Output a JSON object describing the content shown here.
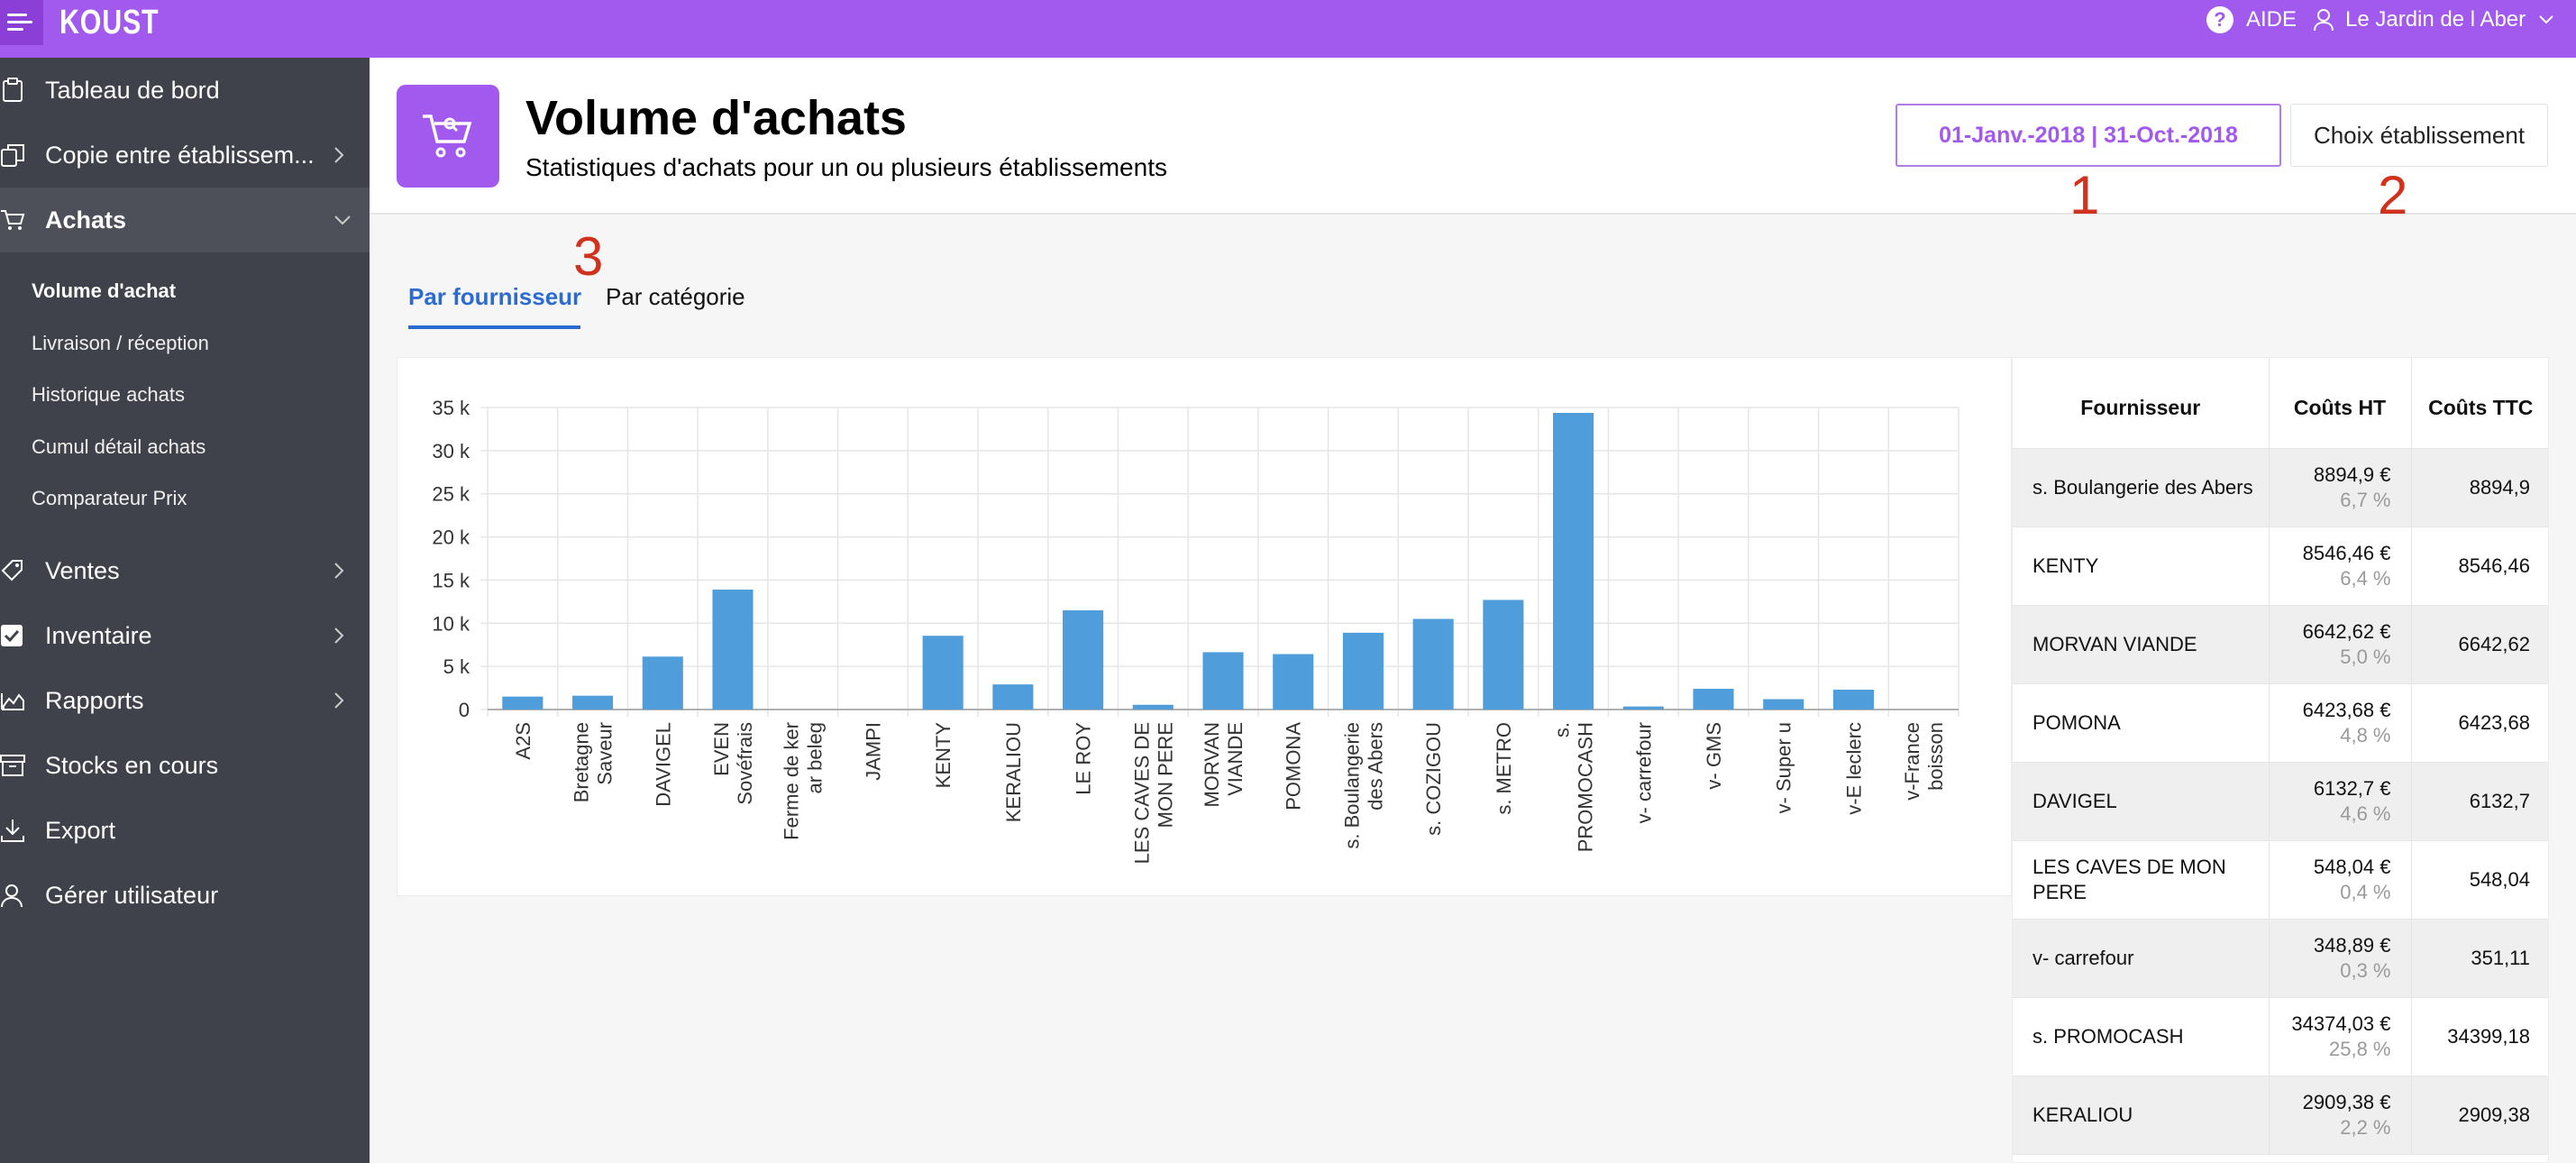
{
  "topbar": {
    "logo": "KOUST",
    "help_label": "AIDE",
    "help_icon": "?",
    "user_label": "Le Jardin de l Aber"
  },
  "sidebar": {
    "items": [
      {
        "label": "Tableau de bord",
        "icon": "clipboard-icon"
      },
      {
        "label": "Copie entre établissem...",
        "icon": "copy-icon"
      },
      {
        "label": "Achats",
        "icon": "cart-icon"
      },
      {
        "label": "Ventes",
        "icon": "tag-icon"
      },
      {
        "label": "Inventaire",
        "icon": "checkbox-icon"
      },
      {
        "label": "Rapports",
        "icon": "chart-area-icon"
      },
      {
        "label": "Stocks en cours",
        "icon": "archive-icon"
      },
      {
        "label": "Export",
        "icon": "download-icon"
      },
      {
        "label": "Gérer utilisateur",
        "icon": "user-icon"
      }
    ],
    "sub_items": [
      {
        "label": "Volume d'achat"
      },
      {
        "label": "Livraison / réception"
      },
      {
        "label": "Historique achats"
      },
      {
        "label": "Cumul détail achats"
      },
      {
        "label": "Comparateur Prix"
      }
    ]
  },
  "header": {
    "title": "Volume d'achats",
    "subtitle": "Statistiques d'achats pour un ou plusieurs établissements",
    "date_range": "01-Janv.-2018 | 31-Oct.-2018",
    "establishment_button": "Choix établissement"
  },
  "annotations": [
    "1",
    "2",
    "3"
  ],
  "tabs": [
    {
      "label": "Par fournisseur"
    },
    {
      "label": "Par catégorie"
    }
  ],
  "colors": {
    "accent": "#a259ee",
    "bar": "#4f9ddb",
    "tab_active": "#2c6bcf",
    "annotation": "#d0321e"
  },
  "chart_data": {
    "type": "bar",
    "categories": [
      [
        "A2S"
      ],
      [
        "Bretagne",
        "Saveur"
      ],
      [
        "DAVIGEL"
      ],
      [
        "EVEN",
        "Sovéfrais"
      ],
      [
        "Ferme de ker",
        "ar beleg"
      ],
      [
        "JAMPI"
      ],
      [
        "KENTY"
      ],
      [
        "KERALIOU"
      ],
      [
        "LE ROY"
      ],
      [
        "LES CAVES DE",
        "MON PERE"
      ],
      [
        "MORVAN",
        "VIANDE"
      ],
      [
        "POMONA"
      ],
      [
        "s. Boulangerie",
        "des Abers"
      ],
      [
        "s. COZIGOU"
      ],
      [
        "s. METRO"
      ],
      [
        "s.",
        "PROMOCASH"
      ],
      [
        "v- carrefour"
      ],
      [
        "v- GMS"
      ],
      [
        "v- Super u"
      ],
      [
        "v-E leclerc"
      ],
      [
        "v-France",
        "boisson"
      ]
    ],
    "values": [
      1500,
      1600,
      6133,
      13900,
      0,
      0,
      8546,
      2909,
      11500,
      548,
      6643,
      6424,
      8895,
      10500,
      12700,
      34374,
      349,
      2400,
      1200,
      2300,
      0
    ],
    "yticks": [
      "0",
      "5 k",
      "10 k",
      "15 k",
      "20 k",
      "25 k",
      "30 k",
      "35 k"
    ],
    "ylim": [
      0,
      35000
    ]
  },
  "table": {
    "headers": [
      "Fournisseur",
      "Coûts HT",
      "Coûts TTC"
    ],
    "rows": [
      {
        "name": "s. Boulangerie des Abers",
        "ht": "8894,9 €",
        "pct": "6,7 %",
        "ttc": "8894,9"
      },
      {
        "name": "KENTY",
        "ht": "8546,46 €",
        "pct": "6,4 %",
        "ttc": "8546,46"
      },
      {
        "name": "MORVAN VIANDE",
        "ht": "6642,62 €",
        "pct": "5,0 %",
        "ttc": "6642,62"
      },
      {
        "name": "POMONA",
        "ht": "6423,68 €",
        "pct": "4,8 %",
        "ttc": "6423,68"
      },
      {
        "name": "DAVIGEL",
        "ht": "6132,7 €",
        "pct": "4,6 %",
        "ttc": "6132,7"
      },
      {
        "name": "LES CAVES DE MON PERE",
        "ht": "548,04 €",
        "pct": "0,4 %",
        "ttc": "548,04"
      },
      {
        "name": "v- carrefour",
        "ht": "348,89 €",
        "pct": "0,3 %",
        "ttc": "351,11"
      },
      {
        "name": "s. PROMOCASH",
        "ht": "34374,03 €",
        "pct": "25,8 %",
        "ttc": "34399,18"
      },
      {
        "name": "KERALIOU",
        "ht": "2909,38 €",
        "pct": "2,2 %",
        "ttc": "2909,38"
      }
    ]
  }
}
